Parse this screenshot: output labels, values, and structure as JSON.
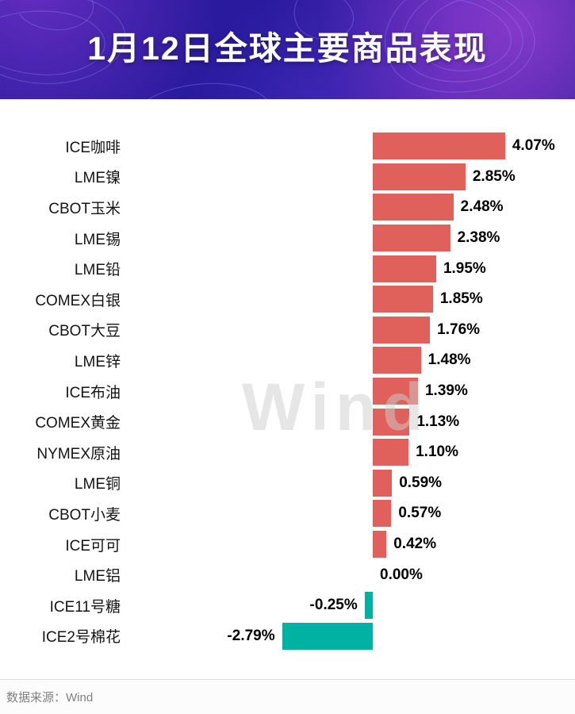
{
  "header": {
    "title": "1月12日全球主要商品表现"
  },
  "watermark": "Wind",
  "footer": {
    "source": "数据来源：Wind"
  },
  "chart_data": {
    "type": "bar",
    "orientation": "horizontal",
    "title": "1月12日全球主要商品表现",
    "xlabel": "",
    "ylabel": "",
    "grid": false,
    "legend": false,
    "xlim": [
      -3,
      4.5
    ],
    "unit": "%",
    "positive_color": "#e0605c",
    "negative_color": "#00b2a1",
    "categories": [
      "ICE咖啡",
      "LME镍",
      "CBOT玉米",
      "LME锡",
      "LME铅",
      "COMEX白银",
      "CBOT大豆",
      "LME锌",
      "ICE布油",
      "COMEX黄金",
      "NYMEX原油",
      "LME铜",
      "CBOT小麦",
      "ICE可可",
      "LME铝",
      "ICE11号糖",
      "ICE2号棉花"
    ],
    "values": [
      4.07,
      2.85,
      2.48,
      2.38,
      1.95,
      1.85,
      1.76,
      1.48,
      1.39,
      1.13,
      1.1,
      0.59,
      0.57,
      0.42,
      0.0,
      -0.25,
      -2.79
    ],
    "value_labels": [
      "4.07%",
      "2.85%",
      "2.48%",
      "2.38%",
      "1.95%",
      "1.85%",
      "1.76%",
      "1.48%",
      "1.39%",
      "1.13%",
      "1.10%",
      "0.59%",
      "0.57%",
      "0.42%",
      "0.00%",
      "-0.25%",
      "-2.79%"
    ]
  }
}
